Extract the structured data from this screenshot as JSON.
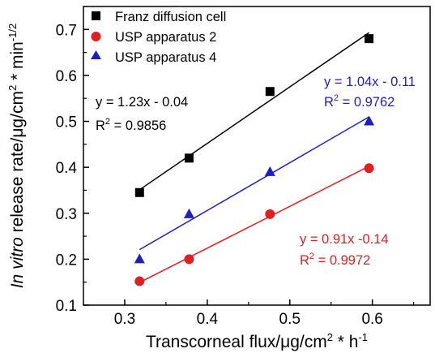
{
  "chart_data": {
    "type": "scatter",
    "xlabel": {
      "prefix": "Transcorneal flux/",
      "mu": "μ",
      "mid": "g/cm",
      "sup": "2",
      "suffix": " * h",
      "sup2": "-1"
    },
    "ylabel": {
      "italic": "In vitro",
      "rest": " release rate/",
      "mu": "μ",
      "mid": "g/cm",
      "sup": "2",
      "suffix": " * min",
      "sup2": "-1/2"
    },
    "xlim": [
      0.25,
      0.67
    ],
    "ylim": [
      0.1,
      0.75
    ],
    "xticks": [
      0.3,
      0.4,
      0.5,
      0.6
    ],
    "xtick_labels": [
      "0.3",
      "0.4",
      "0.5",
      "0.6"
    ],
    "yticks": [
      0.1,
      0.2,
      0.3,
      0.4,
      0.5,
      0.6,
      0.7
    ],
    "ytick_labels": [
      "0.1",
      "0.2",
      "0.3",
      "0.4",
      "0.5",
      "0.6",
      "0.7"
    ],
    "grid": false,
    "legend_position": "top-left",
    "series": [
      {
        "name": "Franz diffusion cell",
        "marker": "square",
        "color": "#000000",
        "x": [
          0.318,
          0.378,
          0.476,
          0.596
        ],
        "y": [
          0.345,
          0.42,
          0.565,
          0.68
        ],
        "fit": {
          "slope": 1.23,
          "intercept": -0.04,
          "equation": "y = 1.23x - 0.04",
          "r2_label": "R",
          "r2_sup": "2",
          "r2_value": " = 0.9856"
        }
      },
      {
        "name": "USP apparatus 2",
        "marker": "circle",
        "color": "#e02020",
        "x": [
          0.318,
          0.378,
          0.476,
          0.596
        ],
        "y": [
          0.152,
          0.2,
          0.298,
          0.398
        ],
        "fit": {
          "slope": 0.91,
          "intercept": -0.14,
          "equation": "y = 0.91x -0.14",
          "r2_label": "R",
          "r2_sup": "2",
          "r2_value": " = 0.9972"
        }
      },
      {
        "name": "USP apparatus 4",
        "marker": "triangle",
        "color": "#1f1fbf",
        "x": [
          0.318,
          0.378,
          0.476,
          0.596
        ],
        "y": [
          0.2,
          0.298,
          0.39,
          0.5
        ],
        "fit": {
          "slope": 1.04,
          "intercept": -0.11,
          "equation": "y = 1.04x - 0.11",
          "r2_label": "R",
          "r2_sup": "2",
          "r2_value": " = 0.9762"
        }
      }
    ]
  }
}
